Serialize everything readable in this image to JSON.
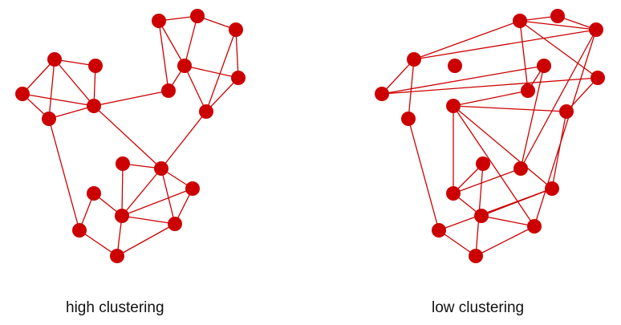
{
  "captions": {
    "left": "high clustering",
    "right": "low clustering"
  },
  "colors": {
    "node": "#cc0000",
    "edge": "#cc0000"
  }
}
